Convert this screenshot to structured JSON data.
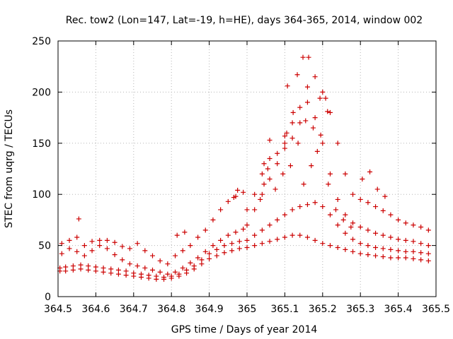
{
  "chart_data": {
    "type": "scatter",
    "title": "Rec. tow2 (Lon=147, Lat=-19, h=HE), days 364-365, 2014, window 002",
    "xlabel": "GPS time / Days of year 2014",
    "ylabel": "STEC from uqrg / TECUs",
    "xlim": [
      364.5,
      365.5
    ],
    "ylim": [
      0,
      250
    ],
    "x_ticks": [
      364.5,
      364.6,
      364.7,
      364.8,
      364.9,
      365.0,
      365.1,
      365.2,
      365.3,
      365.4,
      365.5
    ],
    "x_tick_labels": [
      "364.5",
      "364.6",
      "364.7",
      "364.8",
      "364.9",
      "365",
      "365.1",
      "365.2",
      "365.3",
      "365.4",
      "365.5"
    ],
    "y_ticks": [
      0,
      50,
      100,
      150,
      200,
      250
    ],
    "y_tick_labels": [
      "0",
      "50",
      "100",
      "150",
      "200",
      "250"
    ],
    "grid": true,
    "marker": "+",
    "color": "#cc0000",
    "series": [
      {
        "points": [
          [
            364.505,
            25
          ],
          [
            364.52,
            25
          ],
          [
            364.54,
            26
          ],
          [
            364.56,
            27
          ],
          [
            364.58,
            26
          ],
          [
            364.6,
            25
          ],
          [
            364.62,
            24
          ],
          [
            364.64,
            23
          ],
          [
            364.66,
            22
          ],
          [
            364.68,
            21
          ],
          [
            364.7,
            20
          ],
          [
            364.72,
            19
          ],
          [
            364.74,
            18
          ],
          [
            364.76,
            17
          ],
          [
            364.78,
            17
          ],
          [
            364.8,
            18
          ],
          [
            364.82,
            20
          ],
          [
            364.84,
            23
          ],
          [
            364.86,
            27
          ],
          [
            364.88,
            32
          ],
          [
            364.9,
            37
          ],
          [
            364.92,
            40
          ],
          [
            364.94,
            43
          ],
          [
            364.96,
            45
          ],
          [
            364.98,
            47
          ],
          [
            364.505,
            28
          ],
          [
            364.52,
            29
          ],
          [
            364.54,
            30
          ],
          [
            364.56,
            31
          ],
          [
            364.58,
            30
          ],
          [
            364.6,
            29
          ],
          [
            364.62,
            28
          ],
          [
            364.64,
            27
          ],
          [
            364.66,
            26
          ],
          [
            364.68,
            25
          ],
          [
            364.7,
            23
          ],
          [
            364.72,
            22
          ],
          [
            364.74,
            21
          ],
          [
            364.76,
            20
          ],
          [
            364.78,
            19
          ],
          [
            364.8,
            20
          ],
          [
            364.82,
            22
          ],
          [
            364.84,
            26
          ],
          [
            364.86,
            30
          ],
          [
            364.88,
            36
          ],
          [
            364.9,
            42
          ],
          [
            364.92,
            46
          ],
          [
            364.94,
            50
          ],
          [
            364.96,
            52
          ],
          [
            364.98,
            54
          ],
          [
            364.51,
            42
          ],
          [
            364.53,
            47
          ],
          [
            364.55,
            44
          ],
          [
            364.57,
            40
          ],
          [
            364.59,
            45
          ],
          [
            364.61,
            50
          ],
          [
            364.63,
            47
          ],
          [
            364.65,
            41
          ],
          [
            364.67,
            36
          ],
          [
            364.69,
            32
          ],
          [
            364.71,
            30
          ],
          [
            364.73,
            28
          ],
          [
            364.75,
            26
          ],
          [
            364.77,
            24
          ],
          [
            364.79,
            22
          ],
          [
            364.81,
            24
          ],
          [
            364.83,
            28
          ],
          [
            364.85,
            33
          ],
          [
            364.87,
            38
          ],
          [
            364.89,
            44
          ],
          [
            364.91,
            50
          ],
          [
            364.93,
            55
          ],
          [
            364.95,
            60
          ],
          [
            364.97,
            63
          ],
          [
            364.99,
            66
          ],
          [
            364.51,
            52
          ],
          [
            364.53,
            55
          ],
          [
            364.55,
            58
          ],
          [
            364.57,
            50
          ],
          [
            364.59,
            54
          ],
          [
            364.61,
            55
          ],
          [
            364.63,
            55
          ],
          [
            364.65,
            53
          ],
          [
            364.67,
            49
          ],
          [
            364.69,
            47
          ],
          [
            364.71,
            52
          ],
          [
            364.73,
            45
          ],
          [
            364.75,
            40
          ],
          [
            364.77,
            35
          ],
          [
            364.79,
            32
          ],
          [
            364.81,
            40
          ],
          [
            364.83,
            45
          ],
          [
            364.85,
            50
          ],
          [
            364.87,
            58
          ],
          [
            364.89,
            65
          ],
          [
            364.91,
            75
          ],
          [
            364.93,
            85
          ],
          [
            364.95,
            93
          ],
          [
            364.97,
            98
          ],
          [
            364.99,
            102
          ],
          [
            364.555,
            76
          ],
          [
            364.815,
            60
          ],
          [
            364.835,
            63
          ],
          [
            364.965,
            97
          ],
          [
            364.975,
            104
          ],
          [
            365.0,
            48
          ],
          [
            365.02,
            50
          ],
          [
            365.04,
            52
          ],
          [
            365.06,
            54
          ],
          [
            365.08,
            56
          ],
          [
            365.1,
            58
          ],
          [
            365.12,
            60
          ],
          [
            365.14,
            60
          ],
          [
            365.16,
            58
          ],
          [
            365.18,
            55
          ],
          [
            365.2,
            52
          ],
          [
            365.22,
            50
          ],
          [
            365.24,
            48
          ],
          [
            365.26,
            46
          ],
          [
            365.28,
            44
          ],
          [
            365.3,
            42
          ],
          [
            365.32,
            41
          ],
          [
            365.34,
            40
          ],
          [
            365.36,
            39
          ],
          [
            365.38,
            38
          ],
          [
            365.4,
            38
          ],
          [
            365.42,
            38
          ],
          [
            365.44,
            37
          ],
          [
            365.46,
            36
          ],
          [
            365.48,
            35
          ],
          [
            365.0,
            55
          ],
          [
            365.02,
            60
          ],
          [
            365.04,
            65
          ],
          [
            365.06,
            70
          ],
          [
            365.08,
            75
          ],
          [
            365.1,
            80
          ],
          [
            365.12,
            85
          ],
          [
            365.14,
            88
          ],
          [
            365.16,
            90
          ],
          [
            365.18,
            92
          ],
          [
            365.2,
            88
          ],
          [
            365.22,
            80
          ],
          [
            365.24,
            70
          ],
          [
            365.26,
            62
          ],
          [
            365.28,
            56
          ],
          [
            365.3,
            52
          ],
          [
            365.32,
            50
          ],
          [
            365.34,
            48
          ],
          [
            365.36,
            47
          ],
          [
            365.38,
            46
          ],
          [
            365.4,
            45
          ],
          [
            365.42,
            44
          ],
          [
            365.44,
            44
          ],
          [
            365.46,
            43
          ],
          [
            365.48,
            42
          ],
          [
            365.0,
            70
          ],
          [
            365.02,
            85
          ],
          [
            365.04,
            100
          ],
          [
            365.06,
            115
          ],
          [
            365.08,
            130
          ],
          [
            365.1,
            150
          ],
          [
            365.12,
            170
          ],
          [
            365.14,
            185
          ],
          [
            365.16,
            190
          ],
          [
            365.18,
            175
          ],
          [
            365.2,
            150
          ],
          [
            365.22,
            120
          ],
          [
            365.24,
            95
          ],
          [
            365.26,
            80
          ],
          [
            365.28,
            72
          ],
          [
            365.3,
            68
          ],
          [
            365.32,
            65
          ],
          [
            365.34,
            62
          ],
          [
            365.36,
            60
          ],
          [
            365.38,
            58
          ],
          [
            365.4,
            56
          ],
          [
            365.42,
            55
          ],
          [
            365.44,
            54
          ],
          [
            365.46,
            52
          ],
          [
            365.48,
            50
          ],
          [
            365.0,
            85
          ],
          [
            365.02,
            100
          ],
          [
            365.04,
            120
          ],
          [
            365.06,
            135
          ],
          [
            365.08,
            140
          ],
          [
            365.1,
            145
          ],
          [
            365.12,
            155
          ],
          [
            365.14,
            170
          ],
          [
            365.16,
            205
          ],
          [
            365.18,
            215
          ],
          [
            365.2,
            200
          ],
          [
            365.22,
            180
          ],
          [
            365.24,
            150
          ],
          [
            365.26,
            120
          ],
          [
            365.28,
            100
          ],
          [
            365.3,
            95
          ],
          [
            365.32,
            92
          ],
          [
            365.34,
            88
          ],
          [
            365.36,
            84
          ],
          [
            365.38,
            80
          ],
          [
            365.4,
            75
          ],
          [
            365.42,
            72
          ],
          [
            365.44,
            70
          ],
          [
            365.46,
            68
          ],
          [
            365.48,
            65
          ],
          [
            365.035,
            95
          ],
          [
            365.045,
            110
          ],
          [
            365.055,
            125
          ],
          [
            365.075,
            105
          ],
          [
            365.095,
            120
          ],
          [
            365.105,
            160
          ],
          [
            365.115,
            128
          ],
          [
            365.135,
            150
          ],
          [
            365.155,
            172
          ],
          [
            365.175,
            165
          ],
          [
            365.195,
            158
          ],
          [
            365.215,
            110
          ],
          [
            365.235,
            85
          ],
          [
            365.255,
            75
          ],
          [
            365.275,
            68
          ],
          [
            365.305,
            115
          ],
          [
            365.325,
            122
          ],
          [
            365.345,
            105
          ],
          [
            365.365,
            98
          ],
          [
            365.148,
            234
          ],
          [
            365.163,
            234
          ],
          [
            365.133,
            217
          ],
          [
            365.193,
            194
          ],
          [
            365.208,
            194
          ],
          [
            365.107,
            206
          ],
          [
            365.122,
            180
          ],
          [
            365.213,
            181
          ],
          [
            365.1,
            157
          ],
          [
            365.06,
            153
          ],
          [
            365.045,
            130
          ],
          [
            365.15,
            110
          ],
          [
            365.17,
            128
          ],
          [
            365.186,
            142
          ]
        ]
      }
    ]
  }
}
